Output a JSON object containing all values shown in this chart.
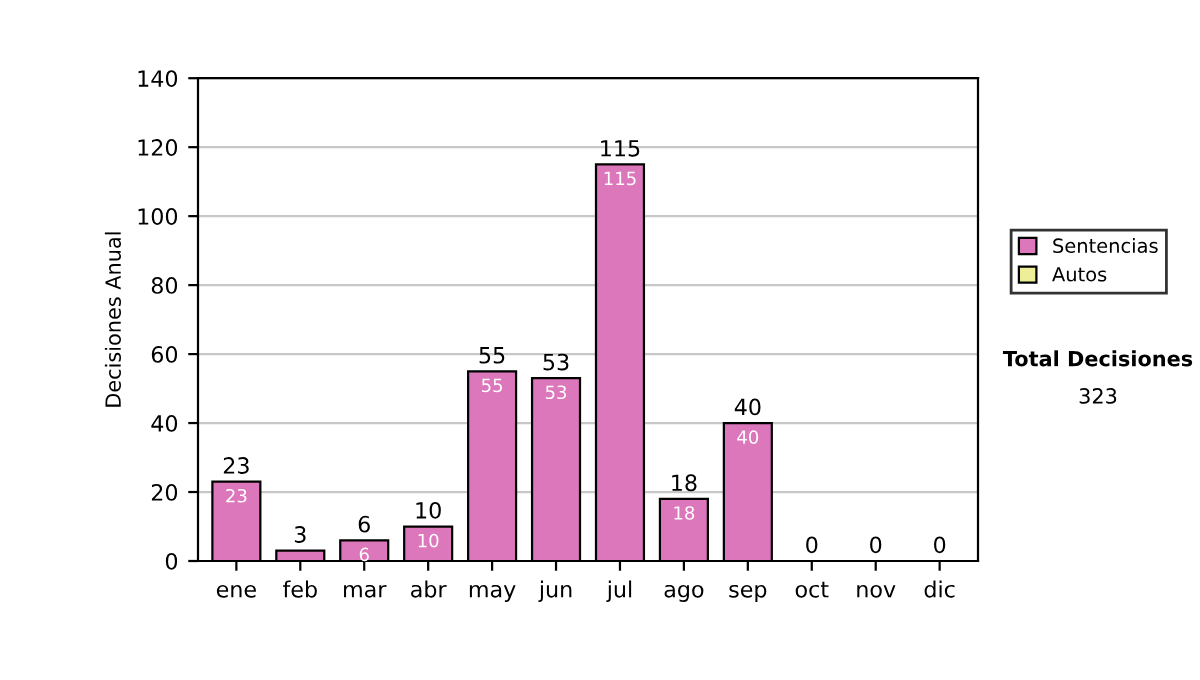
{
  "chart_data": {
    "type": "bar",
    "stacked": true,
    "ylabel": "Decisiones Anual",
    "categories": [
      "ene",
      "feb",
      "mar",
      "abr",
      "may",
      "jun",
      "jul",
      "ago",
      "sep",
      "oct",
      "nov",
      "dic"
    ],
    "series": [
      {
        "name": "Sentencias",
        "color": "#dd77bb",
        "values": [
          23,
          3,
          6,
          10,
          55,
          53,
          115,
          18,
          40,
          0,
          0,
          0
        ],
        "value_labels": [
          "23",
          null,
          "6",
          "10",
          "55",
          "53",
          "115",
          "18",
          "40",
          null,
          null,
          null
        ]
      },
      {
        "name": "Autos",
        "color": "#eeee99",
        "values": [
          0,
          0,
          0,
          0,
          0,
          0,
          0,
          0,
          0,
          0,
          0,
          0
        ]
      }
    ],
    "totals": [
      "23",
      "3",
      "6",
      "10",
      "55",
      "53",
      "115",
      "18",
      "40",
      "0",
      "0",
      "0"
    ],
    "ylim": [
      0,
      140
    ],
    "yticks": [
      0,
      20,
      40,
      60,
      80,
      100,
      120,
      140
    ],
    "grid": "y",
    "legend": "right",
    "annotations": [
      "Total Decisiones",
      "323"
    ]
  }
}
